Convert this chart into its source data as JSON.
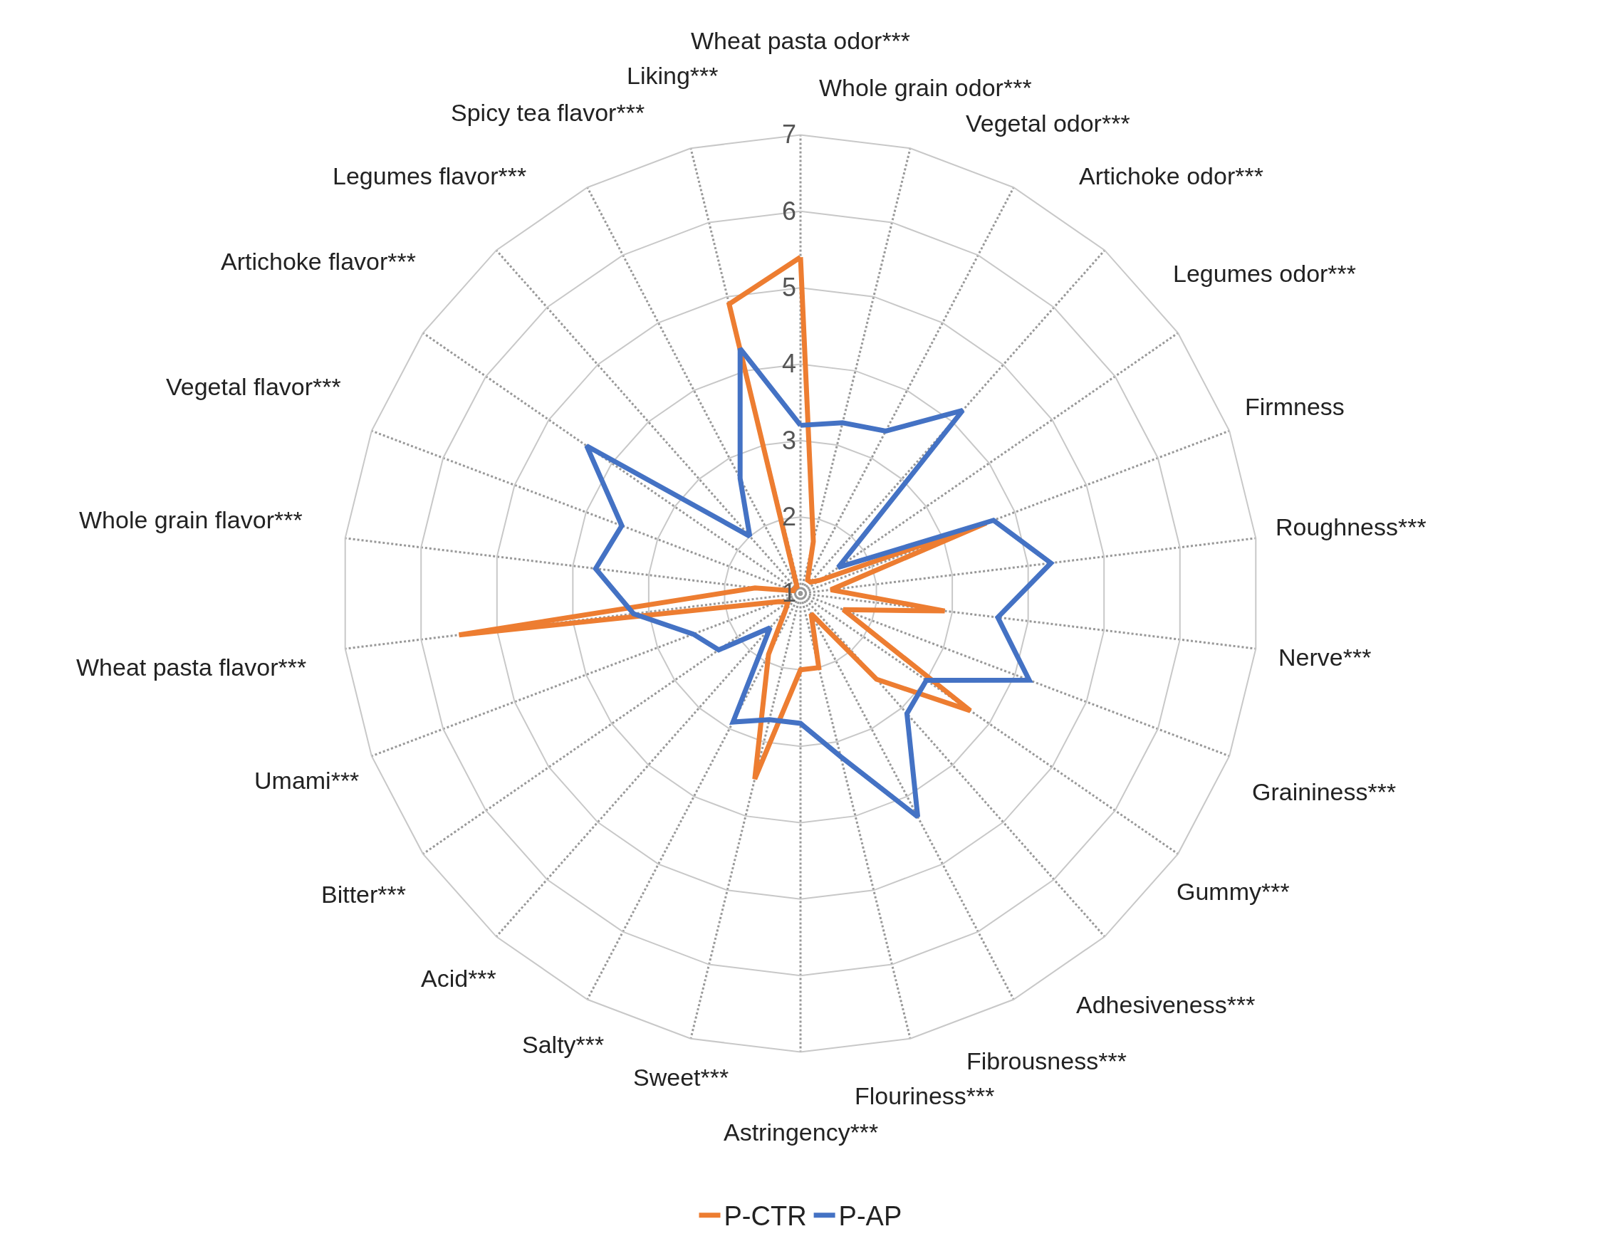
{
  "chart_data": {
    "type": "radar",
    "categories": [
      "Wheat pasta odor***",
      "Whole grain odor***",
      "Vegetal odor***",
      "Artichoke odor***",
      "Legumes odor***",
      "Firmness",
      "Roughness***",
      "Nerve***",
      "Graininess***",
      "Gummy***",
      "Adhesiveness***",
      "Fibrousness***",
      "Flouriness***",
      "Astringency***",
      "Sweet***",
      "Salty***",
      "Acid***",
      "Bitter***",
      "Umami***",
      "Wheat pasta flavor***",
      "Whole grain flavor***",
      "Vegetal flavor***",
      "Artichoke flavor***",
      "Legumes flavor***",
      "Spicy tea flavor***",
      "Liking***"
    ],
    "series": [
      {
        "name": "P-CTR",
        "color": "#ed7d31",
        "values": [
          5.4,
          1.7,
          1.2,
          1.2,
          1.3,
          3.6,
          1.4,
          2.9,
          1.6,
          3.7,
          2.5,
          1.3,
          2.0,
          2.0,
          3.5,
          1.9,
          1.3,
          1.2,
          1.3,
          5.5,
          1.6,
          1.1,
          1.1,
          1.1,
          1.1,
          4.9
        ]
      },
      {
        "name": "P-AP",
        "color": "#4472c4",
        "values": [
          3.2,
          3.3,
          3.4,
          4.2,
          1.6,
          3.7,
          4.3,
          3.6,
          4.2,
          3.0,
          3.1,
          4.3,
          3.2,
          2.7,
          2.7,
          2.9,
          1.6,
          2.3,
          2.5,
          3.2,
          3.7,
          3.5,
          4.4,
          2.0,
          2.7,
          4.3
        ]
      }
    ],
    "ylim": [
      1,
      7
    ],
    "yticks": [
      1,
      2,
      3,
      4,
      5,
      6,
      7
    ],
    "grid": true,
    "legend": "bottom",
    "line_style": "solid",
    "marker": "none"
  }
}
